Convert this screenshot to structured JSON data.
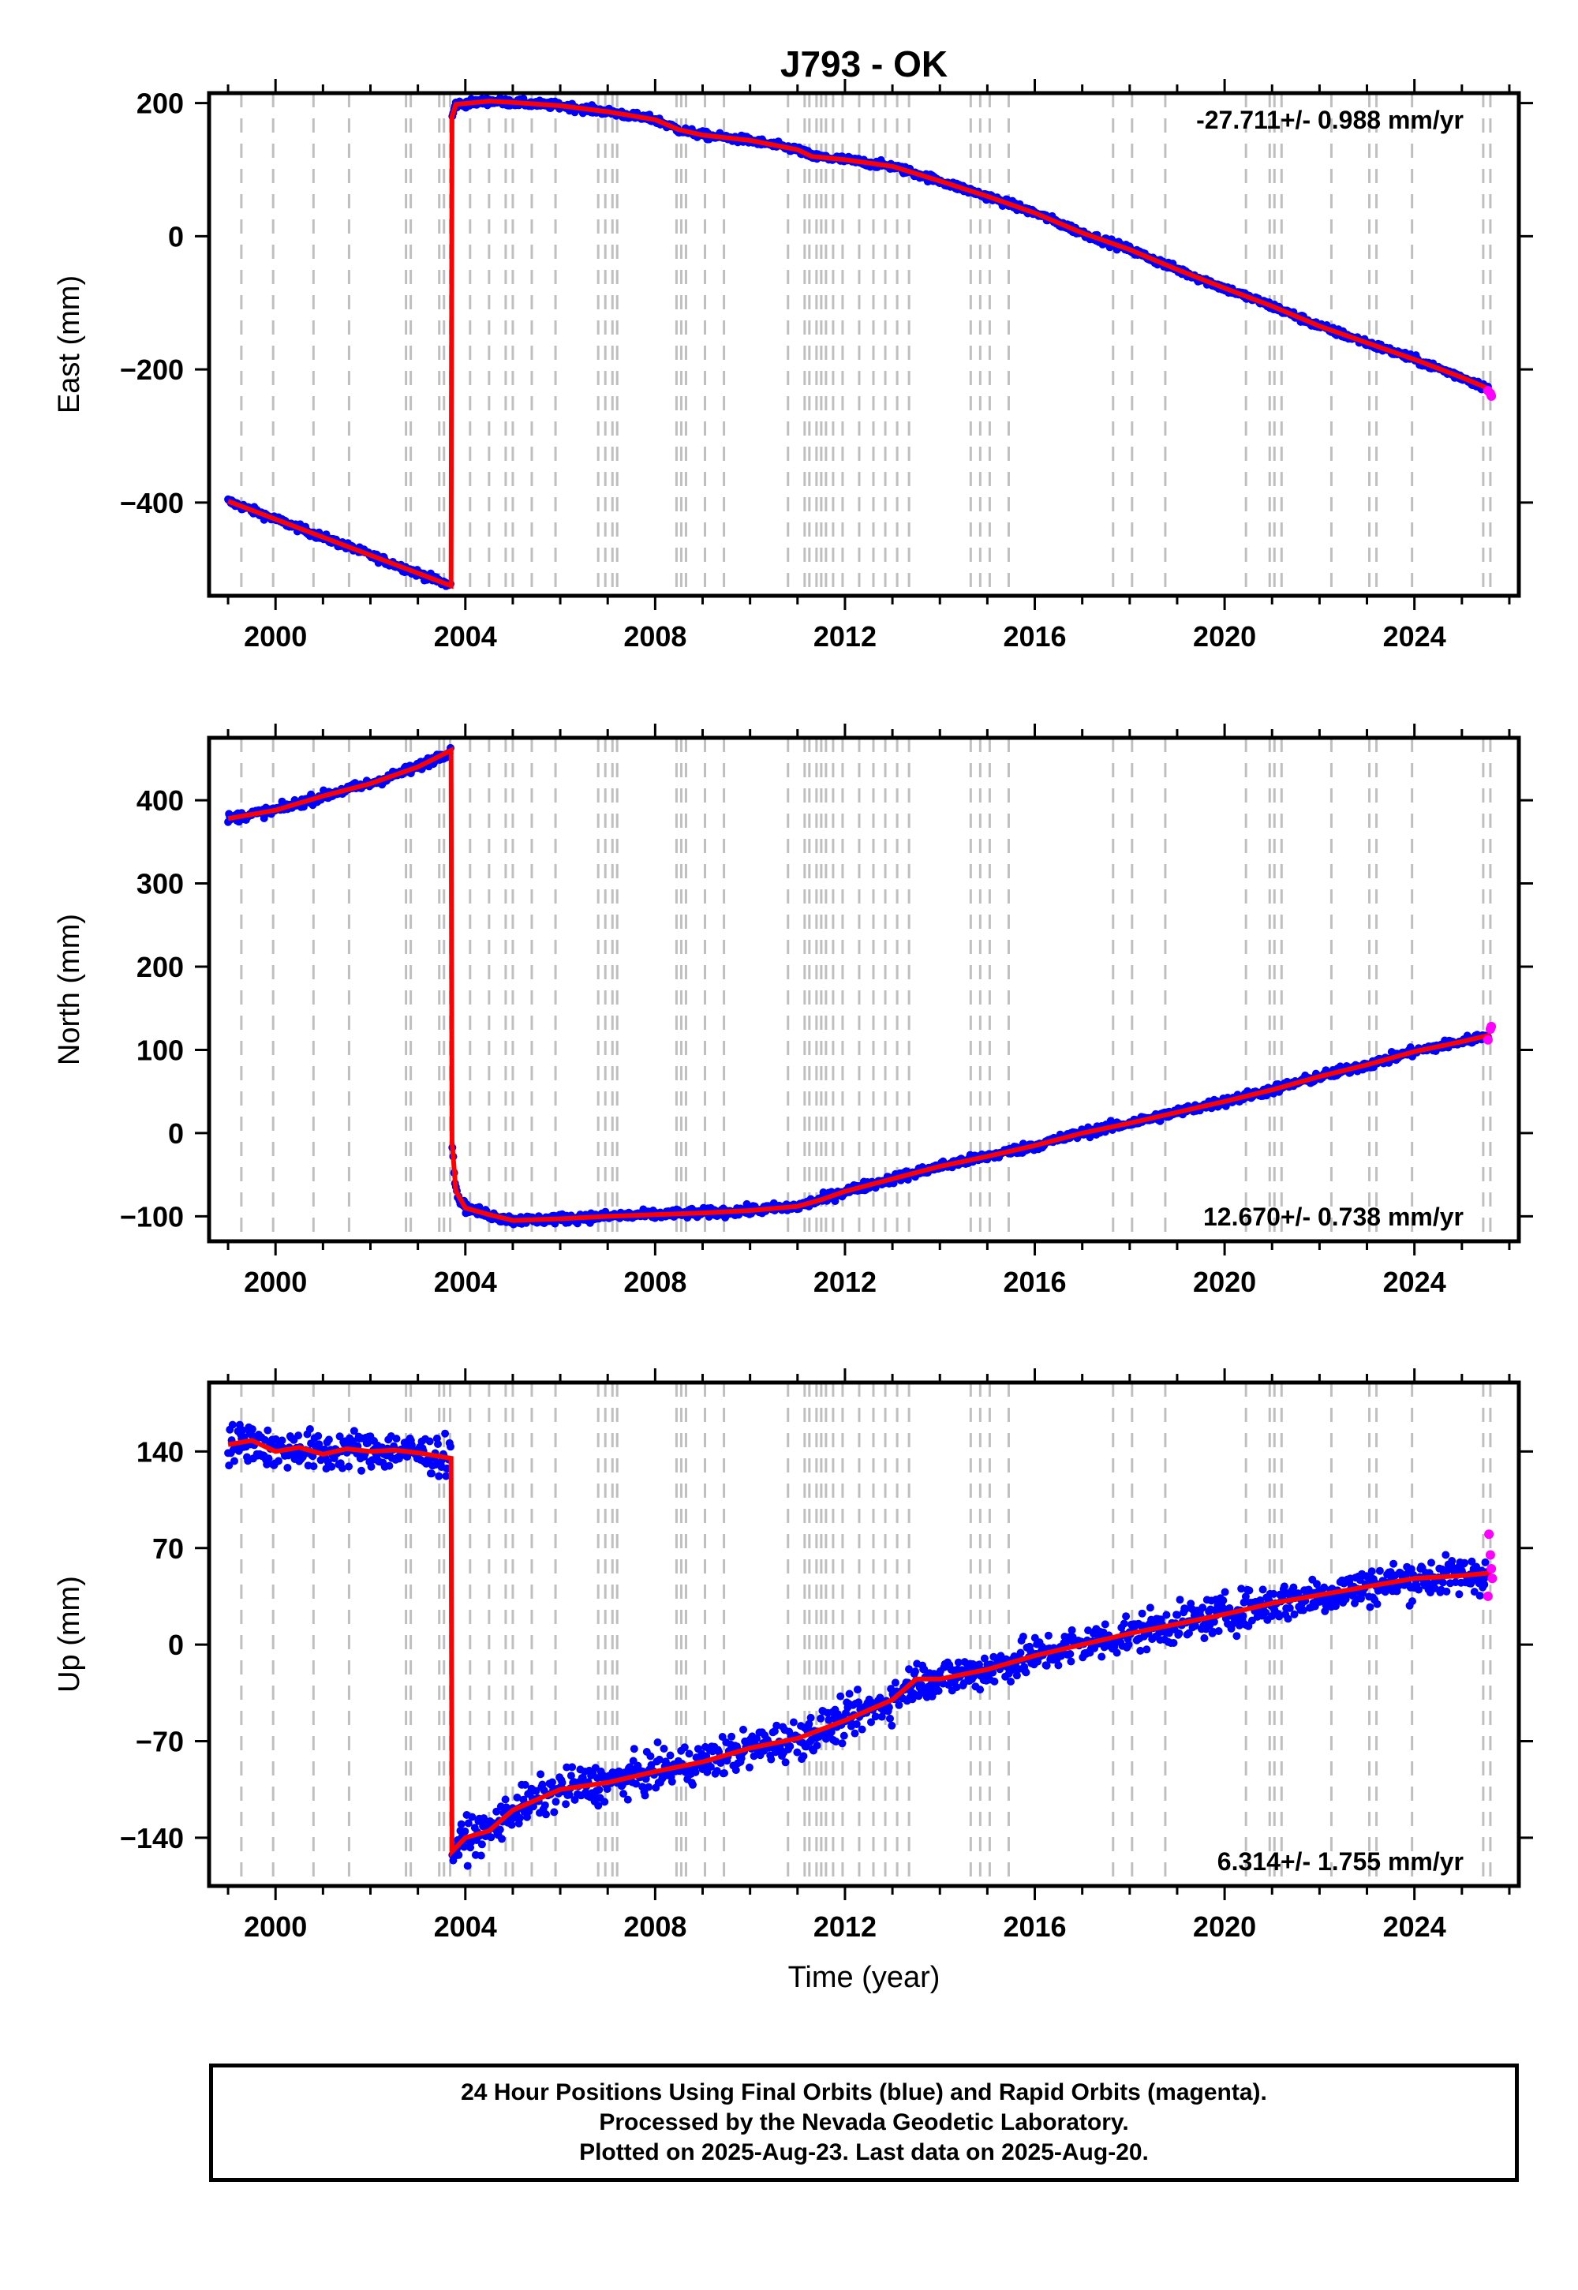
{
  "title": "J793 - OK",
  "colors": {
    "final": "#0000ff",
    "rapid": "#ff00ff",
    "model": "#ff0000",
    "steps": "#bfbfbf"
  },
  "xaxis": {
    "label": "Time (year)",
    "ticks": [
      2000,
      2004,
      2008,
      2012,
      2016,
      2020,
      2024
    ],
    "range": [
      1998.6,
      2026.2
    ]
  },
  "step_epochs": [
    1999.28,
    1999.95,
    2000.8,
    2001.55,
    2002.75,
    2002.85,
    2003.45,
    2003.55,
    2003.68,
    2004.1,
    2004.5,
    2004.85,
    2005.0,
    2005.4,
    2005.9,
    2006.8,
    2006.95,
    2007.1,
    2007.2,
    2008.45,
    2008.55,
    2008.65,
    2009.05,
    2009.45,
    2010.8,
    2011.15,
    2011.25,
    2011.4,
    2011.5,
    2011.6,
    2011.75,
    2011.95,
    2012.3,
    2012.6,
    2012.85,
    2013.1,
    2013.35,
    2014.65,
    2014.85,
    2015.05,
    2015.45,
    2017.65,
    2018.05,
    2018.75,
    2020.45,
    2020.95,
    2021.05,
    2021.2,
    2022.25,
    2023.05,
    2023.2,
    2023.95,
    2025.45,
    2025.6
  ],
  "footer": {
    "line1": "24 Hour Positions Using Final Orbits (blue) and Rapid Orbits (magenta).",
    "line2": "Processed by the Nevada Geodetic Laboratory.",
    "line3": "Plotted on 2025-Aug-23. Last data on 2025-Aug-20."
  },
  "chart_data": [
    {
      "type": "scatter",
      "title": "J793 - OK",
      "ylabel": "East (mm)",
      "xlabel": "",
      "ylim": [
        -540,
        215
      ],
      "yticks": [
        200,
        0,
        -200,
        -400
      ],
      "rate_label": "-27.711+/- 0.988 mm/yr",
      "rate_position": "top-right",
      "offset_epoch": 2003.7,
      "trend_points": [
        [
          1999.0,
          -398
        ],
        [
          2003.7,
          -525
        ],
        [
          2003.72,
          180
        ],
        [
          2003.8,
          198
        ],
        [
          2004.5,
          203
        ],
        [
          2005.0,
          201
        ],
        [
          2006.0,
          196
        ],
        [
          2007.0,
          187
        ],
        [
          2008.0,
          175
        ],
        [
          2008.5,
          160
        ],
        [
          2009.0,
          152
        ],
        [
          2010.0,
          144
        ],
        [
          2011.0,
          130
        ],
        [
          2011.3,
          120
        ],
        [
          2012.0,
          115
        ],
        [
          2013.0,
          105
        ],
        [
          2014.0,
          83
        ],
        [
          2015.0,
          60
        ],
        [
          2016.0,
          35
        ],
        [
          2017.0,
          5
        ],
        [
          2018.0,
          -20
        ],
        [
          2019.0,
          -50
        ],
        [
          2020.0,
          -78
        ],
        [
          2021.0,
          -105
        ],
        [
          2022.0,
          -135
        ],
        [
          2023.0,
          -160
        ],
        [
          2024.0,
          -185
        ],
        [
          2025.0,
          -212
        ],
        [
          2025.6,
          -230
        ]
      ],
      "scatter_spread": 4,
      "rapid_points": [
        [
          2025.55,
          -232
        ],
        [
          2025.6,
          -236
        ],
        [
          2025.62,
          -240
        ]
      ]
    },
    {
      "type": "scatter",
      "title": "",
      "ylabel": "North (mm)",
      "xlabel": "",
      "ylim": [
        -130,
        475
      ],
      "yticks": [
        400,
        300,
        200,
        100,
        0,
        -100
      ],
      "rate_label": "12.670+/- 0.738 mm/yr",
      "rate_position": "bottom-right",
      "offset_epoch": 2003.7,
      "trend_points": [
        [
          1999.0,
          378
        ],
        [
          2000.0,
          388
        ],
        [
          2001.0,
          405
        ],
        [
          2002.0,
          420
        ],
        [
          2003.0,
          440
        ],
        [
          2003.7,
          460
        ],
        [
          2003.72,
          -10
        ],
        [
          2003.8,
          -70
        ],
        [
          2004.0,
          -90
        ],
        [
          2004.5,
          -98
        ],
        [
          2005.0,
          -105
        ],
        [
          2006.0,
          -103
        ],
        [
          2007.0,
          -100
        ],
        [
          2008.0,
          -98
        ],
        [
          2009.0,
          -96
        ],
        [
          2010.0,
          -93
        ],
        [
          2011.0,
          -88
        ],
        [
          2011.5,
          -80
        ],
        [
          2012.0,
          -70
        ],
        [
          2013.0,
          -55
        ],
        [
          2014.0,
          -40
        ],
        [
          2015.0,
          -28
        ],
        [
          2016.0,
          -15
        ],
        [
          2017.0,
          0
        ],
        [
          2018.0,
          12
        ],
        [
          2019.0,
          25
        ],
        [
          2020.0,
          38
        ],
        [
          2021.0,
          52
        ],
        [
          2022.0,
          68
        ],
        [
          2023.0,
          82
        ],
        [
          2024.0,
          98
        ],
        [
          2025.0,
          110
        ],
        [
          2025.6,
          118
        ]
      ],
      "scatter_spread": 4,
      "rapid_points": [
        [
          2025.55,
          112
        ],
        [
          2025.6,
          125
        ],
        [
          2025.62,
          128
        ]
      ]
    },
    {
      "type": "scatter",
      "title": "",
      "ylabel": "Up (mm)",
      "xlabel": "Time (year)",
      "ylim": [
        -175,
        190
      ],
      "yticks": [
        140,
        70,
        0,
        -70,
        -140
      ],
      "rate_label": "6.314+/- 1.755 mm/yr",
      "rate_position": "bottom-right",
      "offset_epoch": 2003.7,
      "trend_points": [
        [
          1999.0,
          145
        ],
        [
          1999.5,
          148
        ],
        [
          2000.0,
          140
        ],
        [
          2000.5,
          143
        ],
        [
          2001.0,
          138
        ],
        [
          2001.5,
          142
        ],
        [
          2002.0,
          140
        ],
        [
          2002.5,
          141
        ],
        [
          2003.0,
          139
        ],
        [
          2003.7,
          135
        ],
        [
          2003.72,
          -150
        ],
        [
          2004.0,
          -140
        ],
        [
          2004.5,
          -135
        ],
        [
          2005.0,
          -120
        ],
        [
          2006.0,
          -105
        ],
        [
          2007.0,
          -100
        ],
        [
          2008.0,
          -92
        ],
        [
          2009.0,
          -85
        ],
        [
          2010.0,
          -75
        ],
        [
          2011.0,
          -68
        ],
        [
          2012.0,
          -55
        ],
        [
          2013.0,
          -40
        ],
        [
          2013.5,
          -25
        ],
        [
          2014.0,
          -25
        ],
        [
          2015.0,
          -18
        ],
        [
          2016.0,
          -8
        ],
        [
          2017.0,
          0
        ],
        [
          2018.0,
          8
        ],
        [
          2019.0,
          15
        ],
        [
          2020.0,
          22
        ],
        [
          2021.0,
          30
        ],
        [
          2022.0,
          36
        ],
        [
          2023.0,
          42
        ],
        [
          2024.0,
          48
        ],
        [
          2025.0,
          50
        ],
        [
          2025.6,
          52
        ]
      ],
      "scatter_spread": 10,
      "rapid_points": [
        [
          2025.55,
          35
        ],
        [
          2025.57,
          80
        ],
        [
          2025.6,
          65
        ],
        [
          2025.62,
          55
        ],
        [
          2025.64,
          48
        ]
      ]
    }
  ]
}
